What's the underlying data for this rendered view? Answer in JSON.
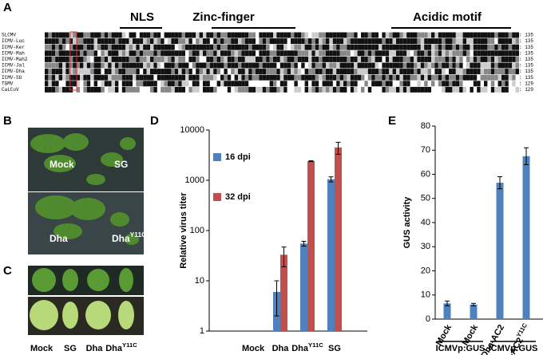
{
  "panel_labels": [
    "A",
    "B",
    "C",
    "D",
    "E"
  ],
  "alignment": {
    "motifs": [
      "NLS",
      "Zinc-finger",
      "Acidic motif"
    ],
    "rows": [
      {
        "name": "SLCMV",
        "end": ": 135"
      },
      {
        "name": "ICMV-Luc",
        "end": ": 135"
      },
      {
        "name": "ICMV-Ker",
        "end": ": 135"
      },
      {
        "name": "ICMV-Mah",
        "end": ": 135"
      },
      {
        "name": "ICMV-Mah2",
        "end": ": 135"
      },
      {
        "name": "ICMV-Jal",
        "end": ": 135"
      },
      {
        "name": "ICMV-Dha",
        "end": ": 135"
      },
      {
        "name": "ICMV-SG",
        "end": ": 135"
      },
      {
        "name": "TGMV",
        "end": ": 129"
      },
      {
        "name": "CaLCuV",
        "end": ": 129"
      }
    ]
  },
  "photos": {
    "B_labels": [
      "Mock",
      "SG",
      "Dha",
      {
        "base": "Dha",
        "sup": "Y11C"
      }
    ],
    "C_labels": [
      "Mock",
      "SG",
      "Dha",
      {
        "base": "Dha",
        "sup": "Y11C"
      }
    ]
  },
  "chart_data": [
    {
      "type": "bar",
      "ylabel": "Relative virus titer",
      "log": true,
      "categories": [
        "Mock",
        "Dha",
        {
          "base": "Dha",
          "sup": "Y11C"
        },
        "SG"
      ],
      "series": [
        {
          "name": "16 dpi",
          "color": "#4f81bd",
          "values": [
            null,
            6,
            55,
            1050
          ],
          "errors": [
            null,
            4,
            6,
            120
          ]
        },
        {
          "name": "32 dpi",
          "color": "#c0504d",
          "values": [
            null,
            33,
            2400,
            4500
          ],
          "errors": [
            null,
            14,
            50,
            1200
          ]
        }
      ],
      "ylim": [
        1,
        10000
      ],
      "yticks": [
        1,
        10,
        100,
        1000,
        10000
      ],
      "legend": "upper left"
    },
    {
      "type": "bar",
      "ylabel": "GUS activity",
      "categories": [
        "Mock",
        "Mock",
        "Dha-AC2",
        {
          "base": "Dha-AC2",
          "sup": "Y11C"
        }
      ],
      "groups": [
        "ICMVp:GUS",
        "ICMVp:GUS"
      ],
      "series": [
        {
          "color": "#4f81bd",
          "values": [
            6.5,
            6,
            56.5,
            67.5
          ],
          "errors": [
            1,
            0.5,
            2.5,
            3.5
          ]
        }
      ],
      "ylim": [
        0,
        80
      ],
      "yticks": [
        0,
        10,
        20,
        30,
        40,
        50,
        60,
        70,
        80
      ]
    }
  ]
}
